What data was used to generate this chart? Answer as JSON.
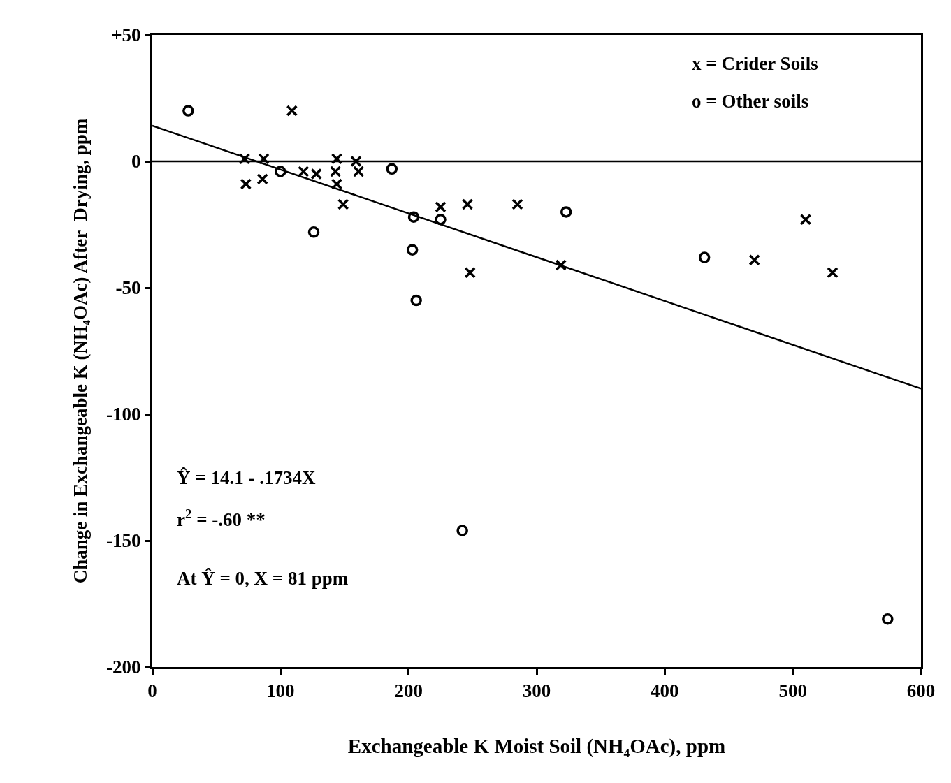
{
  "chart_data": {
    "type": "scatter",
    "xlabel": "Exchangeable K Moist Soil (NH₄OAc), ppm",
    "ylabel": "Change in Exchangeable K (NH₄OAc) After  Drying, ppm",
    "xlim": [
      0,
      600
    ],
    "xticks": [
      0,
      100,
      200,
      300,
      400,
      500,
      600
    ],
    "ylim": [
      -200,
      50
    ],
    "yticks": [
      {
        "value": 50,
        "label": "+50"
      },
      0,
      -50,
      -100,
      -150,
      -200
    ],
    "grid": false,
    "series": [
      {
        "marker": "cross",
        "color": "#000000",
        "x": [
          72,
          73,
          87,
          86,
          109,
          118,
          128,
          144,
          143,
          144,
          149,
          159,
          161,
          225,
          246,
          248,
          285,
          319,
          470,
          510,
          531
        ],
        "values": [
          1,
          -9,
          1,
          -7,
          20,
          -4,
          -5,
          1,
          -4,
          -9,
          -17,
          0,
          -4,
          -18,
          -17,
          -44,
          -17,
          -41,
          -39,
          -23,
          -44
        ]
      },
      {
        "marker": "circle",
        "color": "#000000",
        "x": [
          28,
          100,
          126,
          187,
          204,
          203,
          206,
          225,
          323,
          431,
          242,
          574
        ],
        "values": [
          20,
          -4,
          -28,
          -3,
          -22,
          -35,
          -55,
          -23,
          -20,
          -38,
          -146,
          -181
        ]
      },
      {
        "type": "line",
        "marker": "none",
        "line_style": "solid",
        "color": "#000000",
        "x": [
          0,
          600
        ],
        "values": [
          14.1,
          -89.9
        ]
      }
    ],
    "ref_lines": [
      {
        "axis": "y",
        "value": 0,
        "label": null,
        "color": "#000000",
        "line_style": "solid"
      }
    ],
    "annotations": [
      "x = Crider Soils",
      "o = Other soils",
      "Ŷ = 14.1 - .1734X",
      "r$^{2}$ = -.60 **",
      "At Ŷ = 0, X = 81 ppm"
    ]
  }
}
